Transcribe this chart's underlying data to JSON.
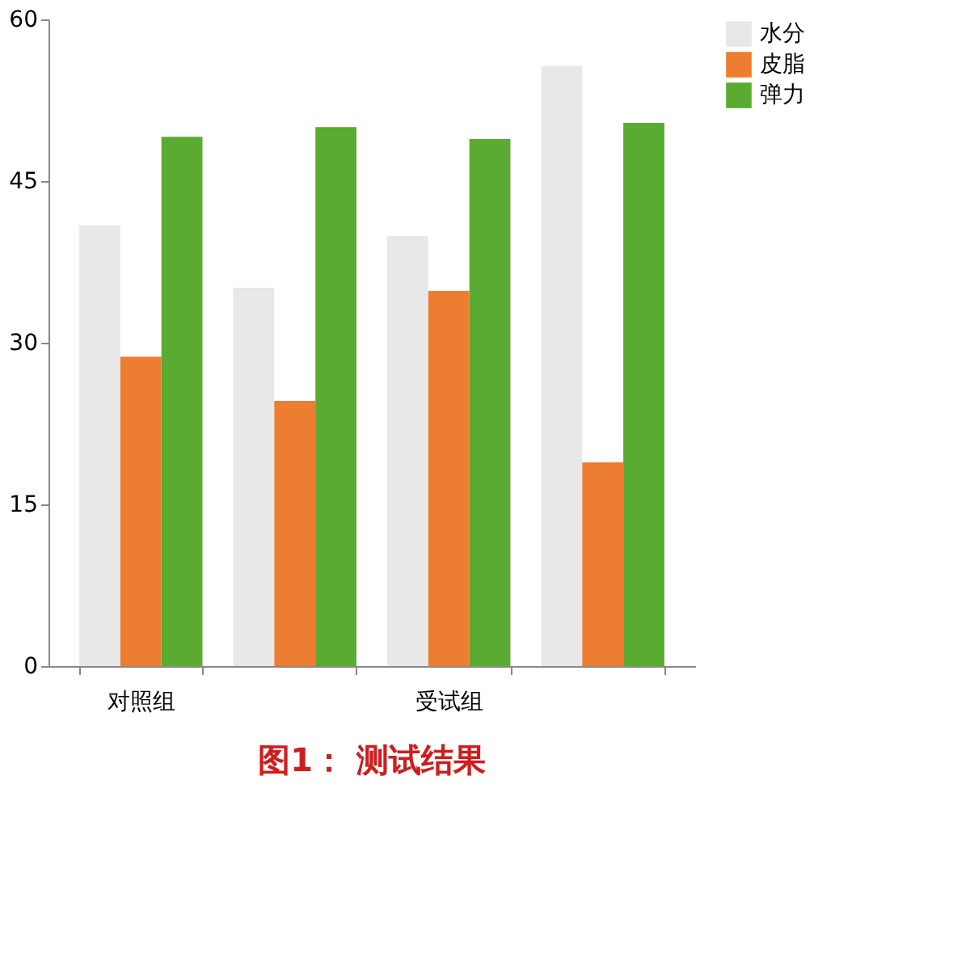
{
  "chart_data": {
    "type": "bar",
    "title": "图1： 测试结果",
    "categories": [
      "对照组",
      null,
      "受试组",
      null
    ],
    "series": [
      {
        "name": "水分",
        "color": "#e8e8e8",
        "values": [
          40.9,
          35.1,
          39.9,
          55.7
        ]
      },
      {
        "name": "皮脂",
        "color": "#ed7d31",
        "values": [
          28.7,
          24.6,
          34.8,
          18.9
        ]
      },
      {
        "name": "弹力",
        "color": "#5aab32",
        "values": [
          49.1,
          50.0,
          48.9,
          50.4
        ]
      }
    ],
    "ylim": [
      0,
      60
    ],
    "yticks": [
      0,
      15,
      30,
      45,
      60
    ],
    "grid": false,
    "legend": "right"
  }
}
